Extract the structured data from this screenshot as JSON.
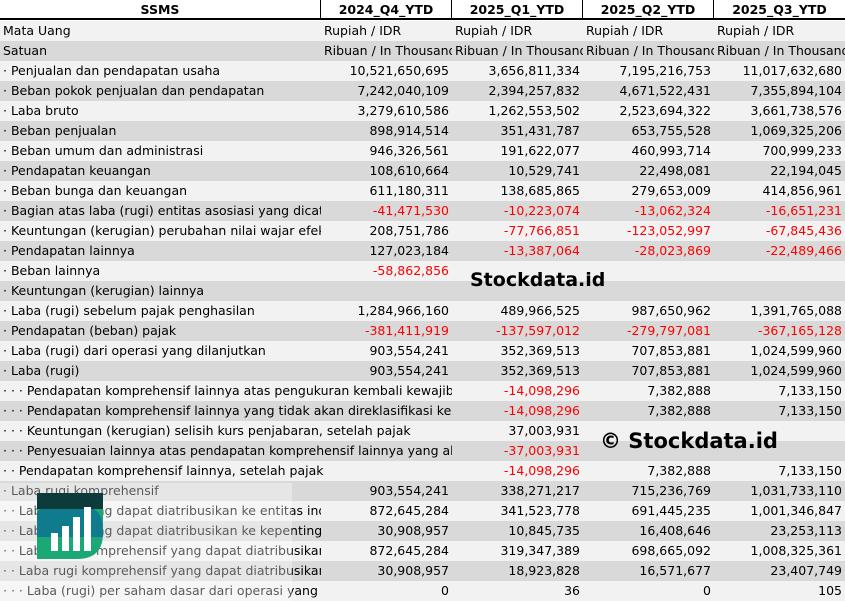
{
  "header": {
    "title": "SSMS",
    "periods": [
      "2024_Q4_YTD",
      "2025_Q1_YTD",
      "2025_Q2_YTD",
      "2025_Q3_YTD"
    ]
  },
  "rows": [
    {
      "label": "Mata Uang",
      "values": [
        "Rupiah / IDR",
        "Rupiah / IDR",
        "Rupiah / IDR",
        "Rupiah / IDR"
      ],
      "align": "left"
    },
    {
      "label": "Satuan",
      "values": [
        "Ribuan / In Thousand",
        "Ribuan / In Thousand",
        "Ribuan / In Thousand",
        "Ribuan / In Thousand"
      ],
      "align": "left"
    },
    {
      "label": "· Penjualan dan pendapatan usaha",
      "values": [
        "10,521,650,695",
        "3,656,811,334",
        "7,195,216,753",
        "11,017,632,680"
      ]
    },
    {
      "label": "· Beban pokok penjualan dan pendapatan",
      "values": [
        "7,242,040,109",
        "2,394,257,832",
        "4,671,522,431",
        "7,355,894,104"
      ]
    },
    {
      "label": "· Laba bruto",
      "values": [
        "3,279,610,586",
        "1,262,553,502",
        "2,523,694,322",
        "3,661,738,576"
      ]
    },
    {
      "label": "· Beban penjualan",
      "values": [
        "898,914,514",
        "351,431,787",
        "653,755,528",
        "1,069,325,206"
      ]
    },
    {
      "label": "· Beban umum dan administrasi",
      "values": [
        "946,326,561",
        "191,622,077",
        "460,993,714",
        "700,999,233"
      ]
    },
    {
      "label": "· Pendapatan keuangan",
      "values": [
        "108,610,664",
        "10,529,741",
        "22,498,081",
        "22,194,045"
      ]
    },
    {
      "label": "· Beban bunga dan keuangan",
      "values": [
        "611,180,311",
        "138,685,865",
        "279,653,009",
        "414,856,961"
      ]
    },
    {
      "label": "· Bagian atas laba (rugi) entitas asosiasi yang dicatat",
      "values": [
        "-41,471,530",
        "-10,223,074",
        "-13,062,324",
        "-16,651,231"
      ]
    },
    {
      "label": "· Keuntungan (kerugian) perubahan nilai wajar efek",
      "values": [
        "208,751,786",
        "-77,766,851",
        "-123,052,997",
        "-67,845,436"
      ]
    },
    {
      "label": "· Pendapatan lainnya",
      "values": [
        "127,023,184",
        "-13,387,064",
        "-28,023,869",
        "-22,489,466"
      ]
    },
    {
      "label": "· Beban lainnya",
      "values": [
        "-58,862,856",
        "",
        "",
        ""
      ]
    },
    {
      "label": "· Keuntungan (kerugian) lainnya",
      "values": [
        "",
        "",
        "",
        ""
      ]
    },
    {
      "label": "· Laba (rugi) sebelum pajak penghasilan",
      "values": [
        "1,284,966,160",
        "489,966,525",
        "987,650,962",
        "1,391,765,088"
      ]
    },
    {
      "label": "· Pendapatan (beban) pajak",
      "values": [
        "-381,411,919",
        "-137,597,012",
        "-279,797,081",
        "-367,165,128"
      ]
    },
    {
      "label": "· Laba (rugi) dari operasi yang dilanjutkan",
      "values": [
        "903,554,241",
        "352,369,513",
        "707,853,881",
        "1,024,599,960"
      ]
    },
    {
      "label": "· Laba (rugi)",
      "values": [
        "903,554,241",
        "352,369,513",
        "707,853,881",
        "1,024,599,960"
      ]
    },
    {
      "label": "· · · Pendapatan komprehensif lainnya atas pengukuran kembali kewajiban",
      "values": [
        "",
        "-14,098,296",
        "7,382,888",
        "7,133,150"
      ]
    },
    {
      "label": "· · · Pendapatan komprehensif lainnya yang tidak akan direklasifikasi ke laba",
      "values": [
        "",
        "-14,098,296",
        "7,382,888",
        "7,133,150"
      ]
    },
    {
      "label": "· · · Keuntungan (kerugian) selisih kurs penjabaran, setelah pajak",
      "values": [
        "",
        "37,003,931",
        "",
        ""
      ]
    },
    {
      "label": "· · · Penyesuaian lainnya atas pendapatan komprehensif lainnya yang akan",
      "values": [
        "",
        "-37,003,931",
        "",
        ""
      ]
    },
    {
      "label": "· · Pendapatan komprehensif lainnya, setelah pajak",
      "values": [
        "",
        "-14,098,296",
        "7,382,888",
        "7,133,150"
      ]
    },
    {
      "label": "· Laba rugi komprehensif",
      "values": [
        "903,554,241",
        "338,271,217",
        "715,236,769",
        "1,031,733,110"
      ]
    },
    {
      "label": "· · Laba rugi yang dapat diatribusikan ke entitas induk",
      "values": [
        "872,645,284",
        "341,523,778",
        "691,445,235",
        "1,001,346,847"
      ]
    },
    {
      "label": "· · Laba rugi yang dapat diatribusikan ke kepentingan",
      "values": [
        "30,908,957",
        "10,845,735",
        "16,408,646",
        "23,253,113"
      ]
    },
    {
      "label": "· · Laba rugi komprehensif yang dapat diatribusikan ke",
      "values": [
        "872,645,284",
        "319,347,389",
        "698,665,092",
        "1,008,325,361"
      ]
    },
    {
      "label": "· · Laba rugi komprehensif yang dapat diatribusikan ke",
      "values": [
        "30,908,957",
        "18,923,828",
        "16,571,677",
        "23,407,749"
      ]
    },
    {
      "label": "· · · Laba (rugi) per saham dasar dari operasi yang dilanjutkan",
      "values": [
        "0",
        "36",
        "0",
        "105"
      ]
    }
  ],
  "watermark": {
    "text": "© Stockdata.id",
    "logo_text": "Stockdata.id"
  },
  "colors": {
    "negative": "#ff0000",
    "row_light": "#f2f2f2",
    "row_dark": "#d9d9d9",
    "logo_dark": "#0d3b3b",
    "logo_teal": "#0e7c8c",
    "logo_green": "#1aa874"
  }
}
